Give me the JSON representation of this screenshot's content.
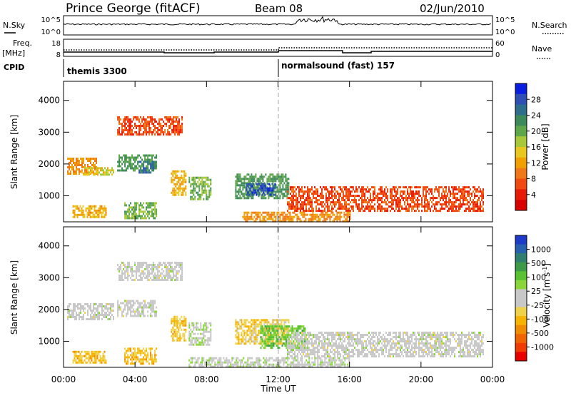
{
  "header": {
    "station": "Prince George (fitACF)",
    "beam": "Beam 08",
    "date": "02/Jun/2010"
  },
  "summary_panels": {
    "nsky_label": "N.Sky",
    "nsky_ticks": [
      "10^5",
      "10^0"
    ],
    "nsearch_label": "N.Search",
    "nsearch_ticks": [
      "10^5",
      "10^0"
    ],
    "freq_label": "Freq.",
    "freq_unit": "[MHz]",
    "freq_ticks": [
      "18",
      "8"
    ],
    "nave_label": "Nave",
    "nave_ticks": [
      "60",
      "0"
    ],
    "cpid_label": "CPID",
    "cpid_segments": [
      {
        "name": "themis 3300",
        "start_hour": 0,
        "end_hour": 12
      },
      {
        "name": "normalsound (fast) 157",
        "start_hour": 12,
        "end_hour": 24
      }
    ]
  },
  "colorbars": {
    "power": {
      "label": "Power [dB]",
      "ticks": [
        "28",
        "24",
        "20",
        "16",
        "12",
        "8",
        "4"
      ],
      "colors": [
        "#0a1ee0",
        "#2f4fb4",
        "#2e6e8c",
        "#3c8a5a",
        "#5fa64a",
        "#a8c83a",
        "#e8c81e",
        "#f0a000",
        "#f07818",
        "#f04a10",
        "#e81a08",
        "#d80000"
      ]
    },
    "velocity": {
      "label": "Velocity [m s",
      "label_superscript": "-1",
      "ticks": [
        "1000",
        "500",
        "100",
        "25",
        "-25",
        "-100",
        "-500",
        "-1000"
      ],
      "colors": [
        "#1e3ac8",
        "#2860b0",
        "#2f7e70",
        "#3c9a48",
        "#58c232",
        "#8ad63a",
        "#c8c8c8",
        "#c8c8c8",
        "#f0d24a",
        "#f5b400",
        "#f08c00",
        "#f06400",
        "#f03c00",
        "#e80000"
      ]
    }
  },
  "axes": {
    "xlabel": "Time UT",
    "xticks": [
      "00:00",
      "04:00",
      "08:00",
      "12:00",
      "16:00",
      "20:00",
      "00:00"
    ],
    "ylabel_power": "Slant Range [km]",
    "ylabel_velocity": "Slant Range [km]",
    "yticks": [
      "4000",
      "3000",
      "2000",
      "1000"
    ]
  },
  "chart_data": [
    {
      "type": "heatmap",
      "title": "",
      "xlabel": "",
      "ylabel": "Slant Range [km]",
      "xlim": [
        0,
        24
      ],
      "ylim": [
        180,
        4600
      ],
      "value_label": "Power [dB]",
      "vlim": [
        0,
        30
      ],
      "regions": [
        {
          "t0": 0.2,
          "t1": 1.8,
          "r0": 1700,
          "r1": 2200,
          "value": 10
        },
        {
          "t0": 1.0,
          "t1": 2.8,
          "r0": 1650,
          "r1": 1900,
          "value": 14
        },
        {
          "t0": 3.0,
          "t1": 5.2,
          "r0": 1800,
          "r1": 2300,
          "value": 20
        },
        {
          "t0": 4.2,
          "t1": 5.0,
          "r0": 1700,
          "r1": 2100,
          "value": 24
        },
        {
          "t0": 6.0,
          "t1": 6.8,
          "r0": 1000,
          "r1": 1800,
          "value": 12
        },
        {
          "t0": 7.0,
          "t1": 8.2,
          "r0": 900,
          "r1": 1600,
          "value": 18
        },
        {
          "t0": 9.6,
          "t1": 12.6,
          "r0": 900,
          "r1": 1700,
          "value": 20
        },
        {
          "t0": 10.2,
          "t1": 11.8,
          "r0": 1000,
          "r1": 1400,
          "value": 26
        },
        {
          "t0": 0.5,
          "t1": 2.4,
          "r0": 300,
          "r1": 700,
          "value": 12
        },
        {
          "t0": 3.4,
          "t1": 5.2,
          "r0": 300,
          "r1": 800,
          "value": 18
        },
        {
          "t0": 3.0,
          "t1": 6.6,
          "r0": 2900,
          "r1": 3500,
          "value": 6
        },
        {
          "t0": 12.5,
          "t1": 23.5,
          "r0": 500,
          "r1": 1300,
          "value": 6
        },
        {
          "t0": 10.0,
          "t1": 16.0,
          "r0": 180,
          "r1": 500,
          "value": 10
        }
      ]
    },
    {
      "type": "heatmap",
      "title": "",
      "xlabel": "Time UT",
      "ylabel": "Slant Range [km]",
      "xlim": [
        0,
        24
      ],
      "ylim": [
        180,
        4600
      ],
      "value_label": "Velocity [m s-1]",
      "vlim": [
        -1000,
        1000
      ],
      "regions": [
        {
          "t0": 0.2,
          "t1": 2.8,
          "r0": 1700,
          "r1": 2200,
          "value": 0
        },
        {
          "t0": 3.0,
          "t1": 5.2,
          "r0": 1800,
          "r1": 2300,
          "value": 0
        },
        {
          "t0": 6.0,
          "t1": 6.8,
          "r0": 1000,
          "r1": 1800,
          "value": -300
        },
        {
          "t0": 7.0,
          "t1": 8.2,
          "r0": 900,
          "r1": 1600,
          "value": 100
        },
        {
          "t0": 9.6,
          "t1": 12.6,
          "r0": 900,
          "r1": 1700,
          "value": -250
        },
        {
          "t0": 11.0,
          "t1": 13.5,
          "r0": 800,
          "r1": 1500,
          "value": 300
        },
        {
          "t0": 0.5,
          "t1": 2.4,
          "r0": 300,
          "r1": 700,
          "value": -300
        },
        {
          "t0": 3.4,
          "t1": 5.2,
          "r0": 300,
          "r1": 800,
          "value": -300
        },
        {
          "t0": 3.0,
          "t1": 6.6,
          "r0": 2900,
          "r1": 3500,
          "value": 0
        },
        {
          "t0": 12.5,
          "t1": 23.5,
          "r0": 500,
          "r1": 1300,
          "value": 0
        },
        {
          "t0": 7.0,
          "t1": 16.0,
          "r0": 180,
          "r1": 500,
          "value": 60
        }
      ]
    }
  ]
}
